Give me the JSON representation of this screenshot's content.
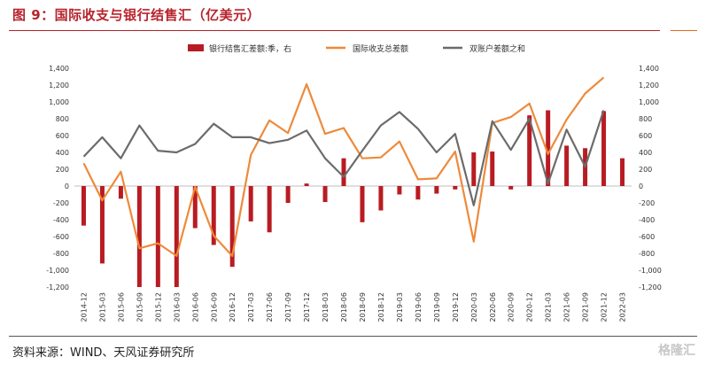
{
  "title": "图 9：国际收支与银行结售汇（亿美元）",
  "source": "资料来源：WIND、天风证券研究所",
  "watermark": "格隆汇",
  "chart_data": {
    "type": "bar+line",
    "categories": [
      "2014-12",
      "2015-03",
      "2015-06",
      "2015-09",
      "2015-12",
      "2016-03",
      "2016-06",
      "2016-09",
      "2016-12",
      "2017-03",
      "2017-06",
      "2017-09",
      "2017-12",
      "2018-03",
      "2018-06",
      "2018-09",
      "2018-12",
      "2019-03",
      "2019-06",
      "2019-09",
      "2019-12",
      "2020-03",
      "2020-06",
      "2020-09",
      "2020-12",
      "2021-03",
      "2021-06",
      "2021-09",
      "2021-12",
      "2022-03"
    ],
    "x_tick_labels": [
      "2014-12",
      "2015-03",
      "2015-06",
      "2015-09",
      "2015-12",
      "2016-03",
      "2016-06",
      "2016-09",
      "2016-12",
      "2017-03",
      "2017-06",
      "2017-09",
      "2017-12",
      "2018-03",
      "2018-06",
      "2018-09",
      "2018-12",
      "2019-03",
      "2019-06",
      "2019-09",
      "2019-12",
      "2020-03",
      "2020-06",
      "2020-09",
      "2020-12",
      "2021-03",
      "2021-06",
      "2021-09",
      "2021-12",
      "2022-03"
    ],
    "y_left_ticks": [
      "-1,200",
      "-1,000",
      "-800",
      "-600",
      "-400",
      "-200",
      "0",
      "200",
      "400",
      "600",
      "800",
      "1,000",
      "1,200",
      "1,400"
    ],
    "y_right_ticks": [
      "-1,200",
      "-1,000",
      "-800",
      "-600",
      "-400",
      "-200",
      "0",
      "200",
      "400",
      "600",
      "800",
      "1,000",
      "1,200",
      "1,400"
    ],
    "ylim": [
      -1200,
      1400
    ],
    "series": [
      {
        "name": "银行结售汇差额:季，右",
        "kind": "bar",
        "axis": "right",
        "color": "#b81c22",
        "values": [
          -470,
          -920,
          -150,
          -1200,
          -1200,
          -1200,
          -500,
          -700,
          -960,
          -420,
          -550,
          -200,
          30,
          -190,
          330,
          -430,
          -290,
          -100,
          -160,
          -90,
          -40,
          400,
          410,
          -40,
          840,
          900,
          480,
          450,
          890,
          330
        ]
      },
      {
        "name": "国际收支总差额",
        "kind": "line",
        "axis": "left",
        "color": "#ee8a3a",
        "values": [
          270,
          -170,
          170,
          -740,
          -680,
          -830,
          -10,
          -590,
          -830,
          370,
          780,
          630,
          1210,
          620,
          690,
          330,
          340,
          530,
          80,
          90,
          410,
          -660,
          750,
          820,
          980,
          380,
          790,
          1100,
          1290,
          null
        ]
      },
      {
        "name": "双账户差额之和",
        "kind": "line",
        "axis": "left",
        "color": "#6b6b6b",
        "values": [
          350,
          580,
          330,
          720,
          420,
          400,
          500,
          740,
          580,
          580,
          510,
          550,
          660,
          330,
          110,
          420,
          720,
          880,
          680,
          400,
          620,
          -230,
          770,
          430,
          800,
          30,
          670,
          230,
          900,
          null
        ]
      }
    ],
    "legend_position": "top-center"
  }
}
